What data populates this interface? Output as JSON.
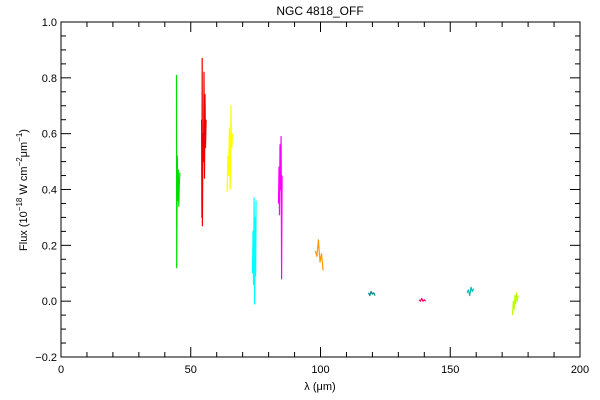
{
  "chart_data": {
    "type": "line",
    "title": "NGC 4818_OFF",
    "xlabel": "λ (μm)",
    "ylabel": "Flux (10",
    "ylabel_exp1": "−18",
    "ylabel_mid": " W cm",
    "ylabel_exp2": "−2",
    "ylabel_unit": "μm",
    "ylabel_exp3": "−1",
    "ylabel_end": ")",
    "xlim": [
      0,
      200
    ],
    "ylim": [
      -0.2,
      1.0
    ],
    "x_ticks": [
      0,
      50,
      100,
      150,
      200
    ],
    "x_tick_labels": [
      "0",
      "50",
      "100",
      "150",
      "200"
    ],
    "y_ticks": [
      -0.2,
      0.0,
      0.2,
      0.4,
      0.6,
      0.8,
      1.0
    ],
    "y_tick_labels": [
      "−0.2",
      "0.0",
      "0.2",
      "0.4",
      "0.6",
      "0.8",
      "1.0"
    ],
    "grid": false,
    "series": [
      {
        "color": "#00dd00",
        "points": [
          [
            44.5,
            0.81
          ],
          [
            44.6,
            0.12
          ],
          [
            44.8,
            0.52
          ],
          [
            45.0,
            0.36
          ],
          [
            45.2,
            0.47
          ],
          [
            45.4,
            0.34
          ],
          [
            45.6,
            0.42
          ],
          [
            45.8,
            0.46
          ]
        ]
      },
      {
        "color": "#ee0000",
        "points": [
          [
            54.2,
            0.65
          ],
          [
            54.3,
            0.3
          ],
          [
            54.4,
            0.87
          ],
          [
            54.5,
            0.27
          ],
          [
            54.7,
            0.6
          ],
          [
            54.9,
            0.5
          ],
          [
            55.1,
            0.82
          ],
          [
            55.3,
            0.44
          ],
          [
            55.5,
            0.74
          ],
          [
            55.7,
            0.55
          ],
          [
            55.9,
            0.65
          ]
        ]
      },
      {
        "color": "#ffff00",
        "points": [
          [
            64.0,
            0.39
          ],
          [
            64.3,
            0.52
          ],
          [
            64.6,
            0.45
          ],
          [
            64.9,
            0.62
          ],
          [
            65.2,
            0.4
          ],
          [
            65.5,
            0.7
          ],
          [
            65.8,
            0.55
          ],
          [
            66.1,
            0.6
          ]
        ]
      },
      {
        "color": "#00ffff",
        "points": [
          [
            73.8,
            0.1
          ],
          [
            74.0,
            0.25
          ],
          [
            74.2,
            0.06
          ],
          [
            74.4,
            0.37
          ],
          [
            74.6,
            -0.01
          ],
          [
            74.8,
            0.3
          ],
          [
            75.0,
            0.09
          ],
          [
            75.2,
            0.36
          ]
        ]
      },
      {
        "color": "#ff00ff",
        "points": [
          [
            83.8,
            0.35
          ],
          [
            84.0,
            0.48
          ],
          [
            84.2,
            0.31
          ],
          [
            84.4,
            0.56
          ],
          [
            84.6,
            0.4
          ],
          [
            84.8,
            0.59
          ],
          [
            85.0,
            0.08
          ],
          [
            85.2,
            0.45
          ]
        ]
      },
      {
        "color": "#ff9900",
        "points": [
          [
            98.0,
            0.18
          ],
          [
            98.6,
            0.16
          ],
          [
            99.2,
            0.22
          ],
          [
            99.8,
            0.14
          ],
          [
            100.4,
            0.17
          ],
          [
            101.0,
            0.11
          ]
        ]
      },
      {
        "color": "#008b8b",
        "points": [
          [
            118.5,
            0.03
          ],
          [
            119.0,
            0.02
          ],
          [
            119.5,
            0.035
          ],
          [
            120.0,
            0.025
          ],
          [
            120.5,
            0.03
          ],
          [
            121.0,
            0.02
          ]
        ]
      },
      {
        "color": "#ff0066",
        "points": [
          [
            138.0,
            0.005
          ],
          [
            138.5,
            0.0
          ],
          [
            139.0,
            0.01
          ],
          [
            139.5,
            0.0
          ],
          [
            140.0,
            0.005
          ],
          [
            140.5,
            0.0
          ]
        ]
      },
      {
        "color": "#00bbbb",
        "points": [
          [
            156.5,
            0.03
          ],
          [
            157.0,
            0.04
          ],
          [
            157.5,
            0.02
          ],
          [
            158.0,
            0.05
          ],
          [
            158.5,
            0.035
          ],
          [
            159.0,
            0.045
          ]
        ]
      },
      {
        "color": "#bbff00",
        "points": [
          [
            174.0,
            -0.05
          ],
          [
            174.3,
            0.0
          ],
          [
            174.6,
            -0.03
          ],
          [
            174.9,
            0.02
          ],
          [
            175.2,
            -0.01
          ],
          [
            175.5,
            0.03
          ],
          [
            175.8,
            0.0
          ],
          [
            176.1,
            0.02
          ]
        ]
      }
    ]
  }
}
